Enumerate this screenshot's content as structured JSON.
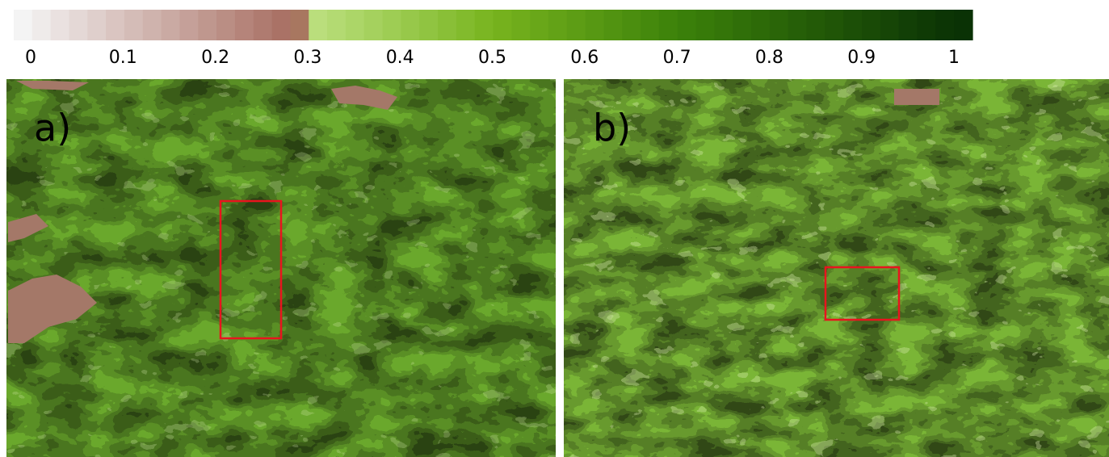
{
  "colorbar": {
    "lim": [
      0,
      1
    ],
    "ticks": [
      0,
      0.1,
      0.2,
      0.3,
      0.4,
      0.5,
      0.6,
      0.7,
      0.8,
      0.9,
      1
    ]
  },
  "panels": [
    {
      "label": "a)"
    },
    {
      "label": "b)"
    }
  ]
}
